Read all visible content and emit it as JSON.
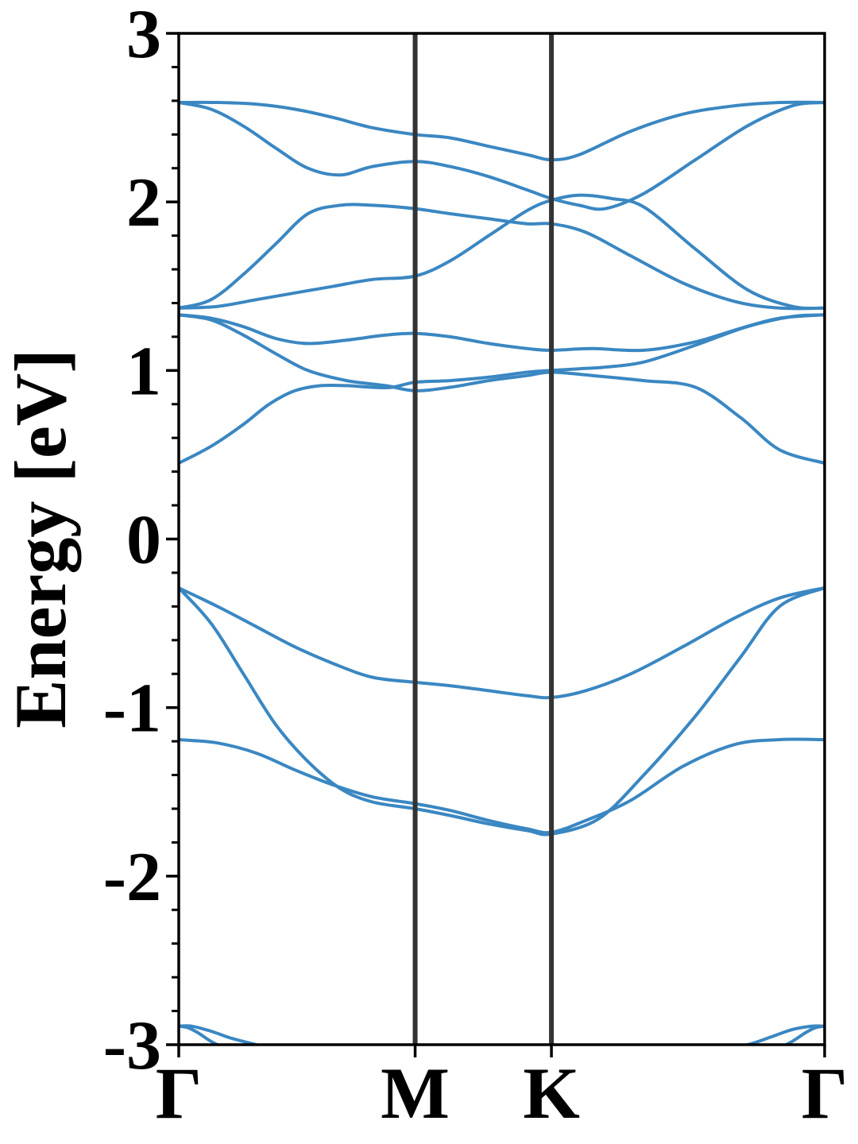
{
  "chart_data": {
    "type": "line",
    "ylabel": "Energy [eV]",
    "xlabel": "",
    "ylim": [
      -3,
      3
    ],
    "xlim": [
      0,
      1
    ],
    "grid": false,
    "legend": "none",
    "y_ticks": [
      "-3",
      "-2",
      "-1",
      "0",
      "1",
      "2",
      "3"
    ],
    "y_tick_values": [
      -3,
      -2,
      -1,
      0,
      1,
      2,
      3
    ],
    "y_minor_step": 0.2,
    "x_ticks": [
      {
        "label": "Γ",
        "x": 0.0
      },
      {
        "label": "M",
        "x": 0.366
      },
      {
        "label": "K",
        "x": 0.577
      },
      {
        "label": "Γ",
        "x": 1.0
      }
    ],
    "colors": {
      "band": "#3a87c2",
      "divider": "#333333",
      "axes": "#000000"
    },
    "series": [
      {
        "x": [
          0,
          0.06,
          0.12,
          0.18,
          0.24,
          0.3,
          0.366,
          0.42,
          0.48,
          0.54,
          0.577,
          0.63,
          0.7,
          0.78,
          0.86,
          0.93,
          1.0
        ],
        "y": [
          -0.29,
          -0.4,
          -0.52,
          -0.64,
          -0.74,
          -0.82,
          -0.85,
          -0.87,
          -0.9,
          -0.93,
          -0.94,
          -0.9,
          -0.8,
          -0.64,
          -0.47,
          -0.35,
          -0.29
        ]
      },
      {
        "x": [
          0,
          0.05,
          0.1,
          0.15,
          0.2,
          0.25,
          0.3,
          0.366,
          0.42,
          0.48,
          0.54,
          0.577,
          0.65,
          0.72,
          0.8,
          0.87,
          0.93,
          1.0
        ],
        "y": [
          -0.29,
          -0.5,
          -0.8,
          -1.1,
          -1.32,
          -1.48,
          -1.56,
          -1.6,
          -1.64,
          -1.69,
          -1.73,
          -1.75,
          -1.66,
          -1.4,
          -1.05,
          -0.7,
          -0.4,
          -0.29
        ]
      },
      {
        "x": [
          0,
          0.06,
          0.12,
          0.18,
          0.24,
          0.3,
          0.366,
          0.42,
          0.48,
          0.54,
          0.577,
          0.63,
          0.7,
          0.78,
          0.86,
          0.93,
          1.0
        ],
        "y": [
          -1.19,
          -1.21,
          -1.27,
          -1.37,
          -1.46,
          -1.53,
          -1.57,
          -1.61,
          -1.67,
          -1.72,
          -1.74,
          -1.67,
          -1.55,
          -1.35,
          -1.22,
          -1.19,
          -1.19
        ]
      },
      {
        "x": [
          0,
          0.05,
          0.1,
          0.14,
          0.18,
          0.22,
          0.26,
          0.3,
          0.33,
          0.366,
          0.42,
          0.48,
          0.54,
          0.577,
          0.62,
          0.66,
          0.72,
          0.8,
          0.88,
          0.95,
          1.0
        ],
        "y": [
          0.45,
          0.55,
          0.68,
          0.8,
          0.88,
          0.91,
          0.91,
          0.9,
          0.9,
          0.93,
          0.94,
          0.96,
          0.99,
          1.0,
          1.01,
          1.02,
          1.05,
          1.15,
          1.26,
          1.32,
          1.33
        ]
      },
      {
        "x": [
          0,
          0.05,
          0.1,
          0.15,
          0.2,
          0.26,
          0.32,
          0.366,
          0.42,
          0.48,
          0.54,
          0.577,
          0.64,
          0.72,
          0.8,
          0.87,
          0.93,
          1.0
        ],
        "y": [
          1.33,
          1.3,
          1.21,
          1.1,
          1.0,
          0.94,
          0.91,
          0.88,
          0.9,
          0.94,
          0.97,
          0.99,
          0.97,
          0.94,
          0.9,
          0.72,
          0.53,
          0.45
        ]
      },
      {
        "x": [
          0,
          0.05,
          0.1,
          0.15,
          0.2,
          0.26,
          0.32,
          0.366,
          0.42,
          0.48,
          0.54,
          0.577,
          0.64,
          0.72,
          0.8,
          0.87,
          0.93,
          1.0
        ],
        "y": [
          1.33,
          1.31,
          1.26,
          1.19,
          1.16,
          1.18,
          1.21,
          1.22,
          1.2,
          1.16,
          1.13,
          1.12,
          1.13,
          1.12,
          1.17,
          1.25,
          1.31,
          1.33
        ]
      },
      {
        "x": [
          0,
          0.06,
          0.12,
          0.18,
          0.24,
          0.3,
          0.366,
          0.42,
          0.48,
          0.54,
          0.577,
          0.62,
          0.67,
          0.72,
          0.8,
          0.88,
          0.95,
          1.0
        ],
        "y": [
          1.37,
          1.38,
          1.42,
          1.46,
          1.5,
          1.54,
          1.56,
          1.65,
          1.8,
          1.95,
          2.01,
          2.04,
          2.02,
          1.97,
          1.72,
          1.48,
          1.38,
          1.37
        ]
      },
      {
        "x": [
          0,
          0.05,
          0.1,
          0.15,
          0.2,
          0.25,
          0.3,
          0.366,
          0.42,
          0.48,
          0.54,
          0.577,
          0.63,
          0.7,
          0.78,
          0.86,
          0.93,
          1.0
        ],
        "y": [
          1.37,
          1.42,
          1.57,
          1.75,
          1.93,
          1.98,
          1.98,
          1.96,
          1.93,
          1.9,
          1.87,
          1.87,
          1.82,
          1.68,
          1.52,
          1.41,
          1.37,
          1.37
        ]
      },
      {
        "x": [
          0,
          0.05,
          0.1,
          0.15,
          0.2,
          0.25,
          0.3,
          0.366,
          0.42,
          0.48,
          0.54,
          0.577,
          0.62,
          0.66,
          0.72,
          0.8,
          0.88,
          0.95,
          1.0
        ],
        "y": [
          2.59,
          2.55,
          2.45,
          2.32,
          2.2,
          2.16,
          2.21,
          2.24,
          2.21,
          2.15,
          2.07,
          2.02,
          1.98,
          1.96,
          2.05,
          2.25,
          2.45,
          2.57,
          2.59
        ]
      },
      {
        "x": [
          0,
          0.06,
          0.12,
          0.18,
          0.24,
          0.3,
          0.366,
          0.42,
          0.48,
          0.54,
          0.577,
          0.62,
          0.7,
          0.78,
          0.86,
          0.93,
          1.0
        ],
        "y": [
          2.59,
          2.59,
          2.58,
          2.55,
          2.5,
          2.44,
          2.4,
          2.38,
          2.33,
          2.28,
          2.25,
          2.28,
          2.42,
          2.52,
          2.57,
          2.59,
          2.59
        ]
      },
      {
        "x": [
          0,
          0.02,
          0.05,
          0.08,
          0.11,
          0.14
        ],
        "y": [
          -2.89,
          -2.89,
          -2.92,
          -2.96,
          -2.99,
          -3.02
        ]
      },
      {
        "x": [
          0.86,
          0.89,
          0.92,
          0.95,
          0.98,
          1.0
        ],
        "y": [
          -3.02,
          -2.99,
          -2.95,
          -2.91,
          -2.89,
          -2.89
        ]
      },
      {
        "x": [
          0,
          0.015,
          0.03,
          0.05,
          0.07
        ],
        "y": [
          -2.89,
          -2.9,
          -2.93,
          -2.98,
          -3.02
        ]
      },
      {
        "x": [
          0.93,
          0.95,
          0.97,
          0.985,
          1.0
        ],
        "y": [
          -3.02,
          -2.98,
          -2.93,
          -2.9,
          -2.89
        ]
      }
    ]
  }
}
